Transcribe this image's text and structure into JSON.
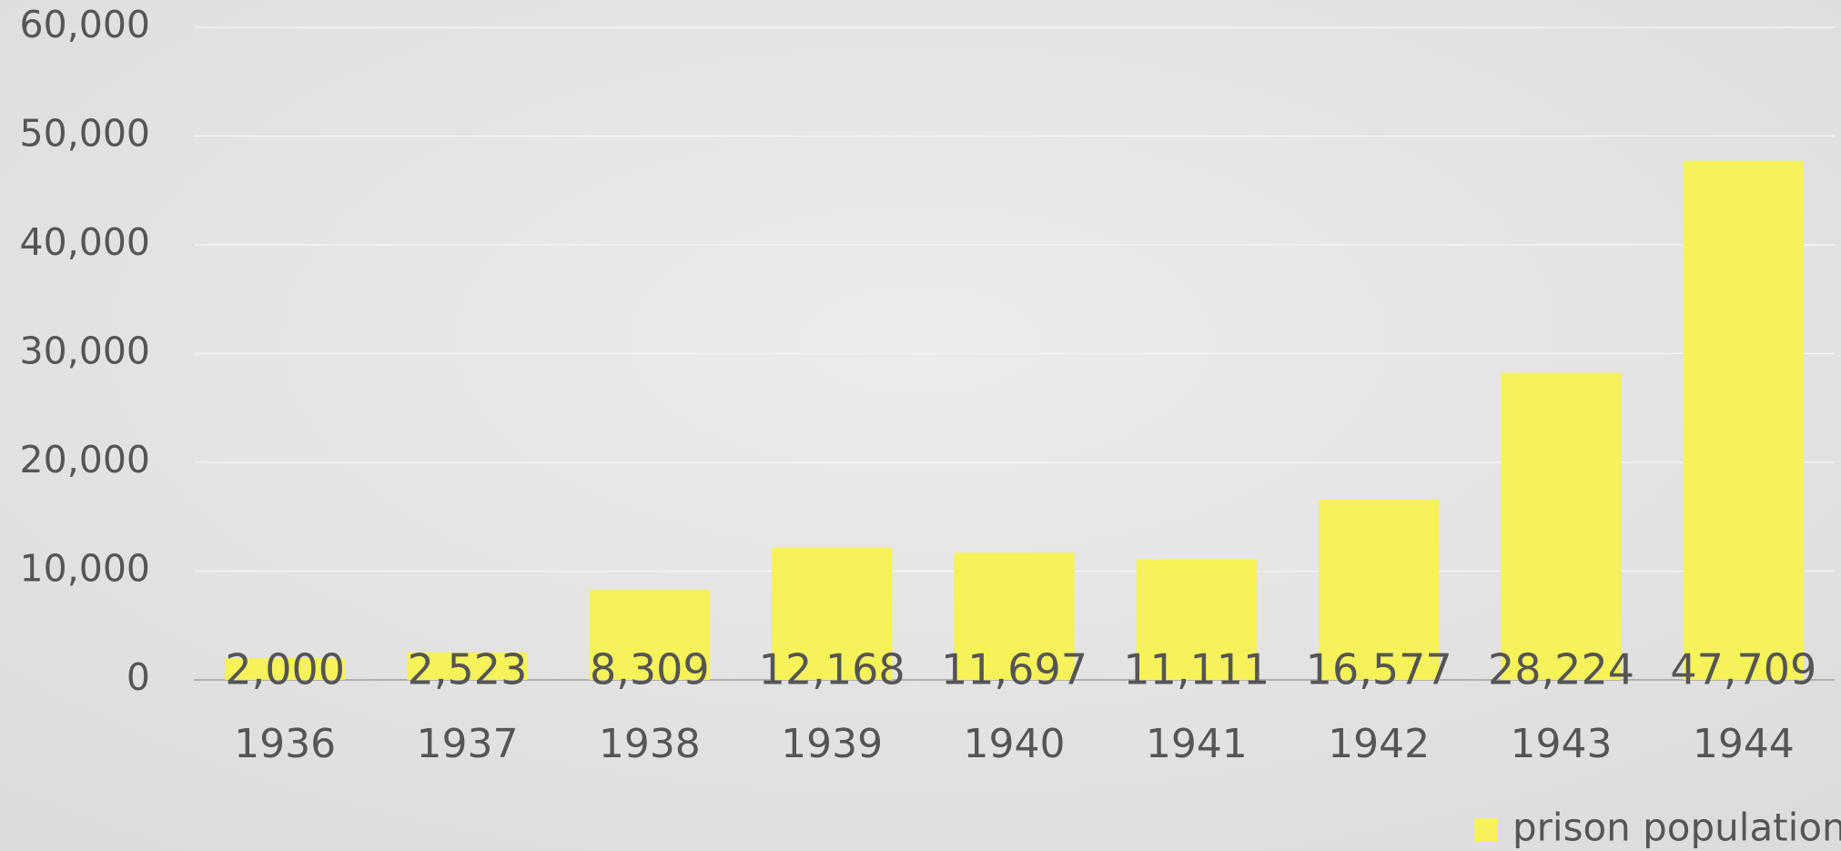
{
  "chart_data": {
    "type": "bar",
    "categories": [
      "1936",
      "1937",
      "1938",
      "1939",
      "1940",
      "1941",
      "1942",
      "1943",
      "1944"
    ],
    "series": [
      {
        "name": "prison population",
        "color": "#f5f25a",
        "values": [
          2000,
          2523,
          8309,
          12168,
          11697,
          11111,
          16577,
          28224,
          47709
        ],
        "value_labels": [
          "2,000",
          "2,523",
          "8,309",
          "12,168",
          "11,697",
          "11,111",
          "16,577",
          "28,224",
          "47,709"
        ]
      }
    ],
    "ylim": [
      0,
      60000
    ],
    "yticks": [
      0,
      {
        "value": 10000,
        "label": "10,000"
      },
      {
        "value": 20000,
        "label": "20,000"
      },
      {
        "value": 30000,
        "label": "30,000"
      },
      {
        "value": 40000,
        "label": "40,000"
      },
      {
        "value": 50000,
        "label": "50,000"
      },
      {
        "value": 60000,
        "label": "60,000"
      }
    ],
    "grid": true,
    "legend": "bottom-right"
  }
}
